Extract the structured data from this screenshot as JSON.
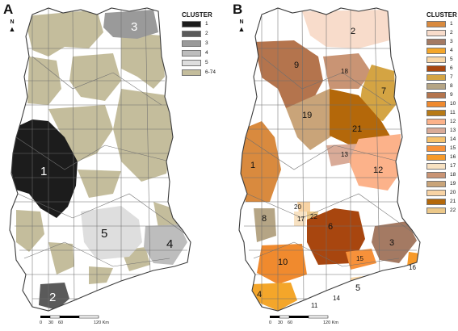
{
  "panel_a": {
    "letter": "A",
    "legend_title": "CLUSTER",
    "legend": [
      {
        "label": "1",
        "color": "#1c1c1c"
      },
      {
        "label": "2",
        "color": "#5a5a5a"
      },
      {
        "label": "3",
        "color": "#9a9a9a"
      },
      {
        "label": "4",
        "color": "#bdbdbd"
      },
      {
        "label": "5",
        "color": "#dedede"
      },
      {
        "label": "6-74",
        "color": "#c4bd9c"
      }
    ],
    "region_labels": [
      "1",
      "2",
      "3",
      "4",
      "5"
    ]
  },
  "panel_b": {
    "letter": "B",
    "legend_title": "CLUSTER",
    "legend": [
      {
        "label": "1",
        "color": "#d98a3e"
      },
      {
        "label": "2",
        "color": "#f8dccb"
      },
      {
        "label": "3",
        "color": "#a47a63"
      },
      {
        "label": "4",
        "color": "#f4a62a"
      },
      {
        "label": "5",
        "color": "#f8d7a8"
      },
      {
        "label": "6",
        "color": "#a8460f"
      },
      {
        "label": "7",
        "color": "#d4a443"
      },
      {
        "label": "8",
        "color": "#b5a585"
      },
      {
        "label": "9",
        "color": "#b4744d"
      },
      {
        "label": "10",
        "color": "#f08a2e"
      },
      {
        "label": "11",
        "color": "#b77a16"
      },
      {
        "label": "12",
        "color": "#fcb28a"
      },
      {
        "label": "13",
        "color": "#d9ab98"
      },
      {
        "label": "14",
        "color": "#f6c26d"
      },
      {
        "label": "15",
        "color": "#f7913a"
      },
      {
        "label": "16",
        "color": "#f79a2a"
      },
      {
        "label": "17",
        "color": "#f8e2c2"
      },
      {
        "label": "18",
        "color": "#c99474"
      },
      {
        "label": "19",
        "color": "#c9a479"
      },
      {
        "label": "20",
        "color": "#f8d3a4"
      },
      {
        "label": "21",
        "color": "#b4680a"
      },
      {
        "label": "22",
        "color": "#ecc889"
      }
    ],
    "region_labels": [
      "1",
      "2",
      "3",
      "4",
      "5",
      "6",
      "7",
      "8",
      "9",
      "10",
      "11",
      "12",
      "13",
      "14",
      "15",
      "16",
      "17",
      "18",
      "19",
      "20",
      "21",
      "22"
    ]
  },
  "scale_bar": {
    "ticks": [
      "0",
      "30",
      "60",
      "120 Km"
    ]
  },
  "north_label": "N"
}
